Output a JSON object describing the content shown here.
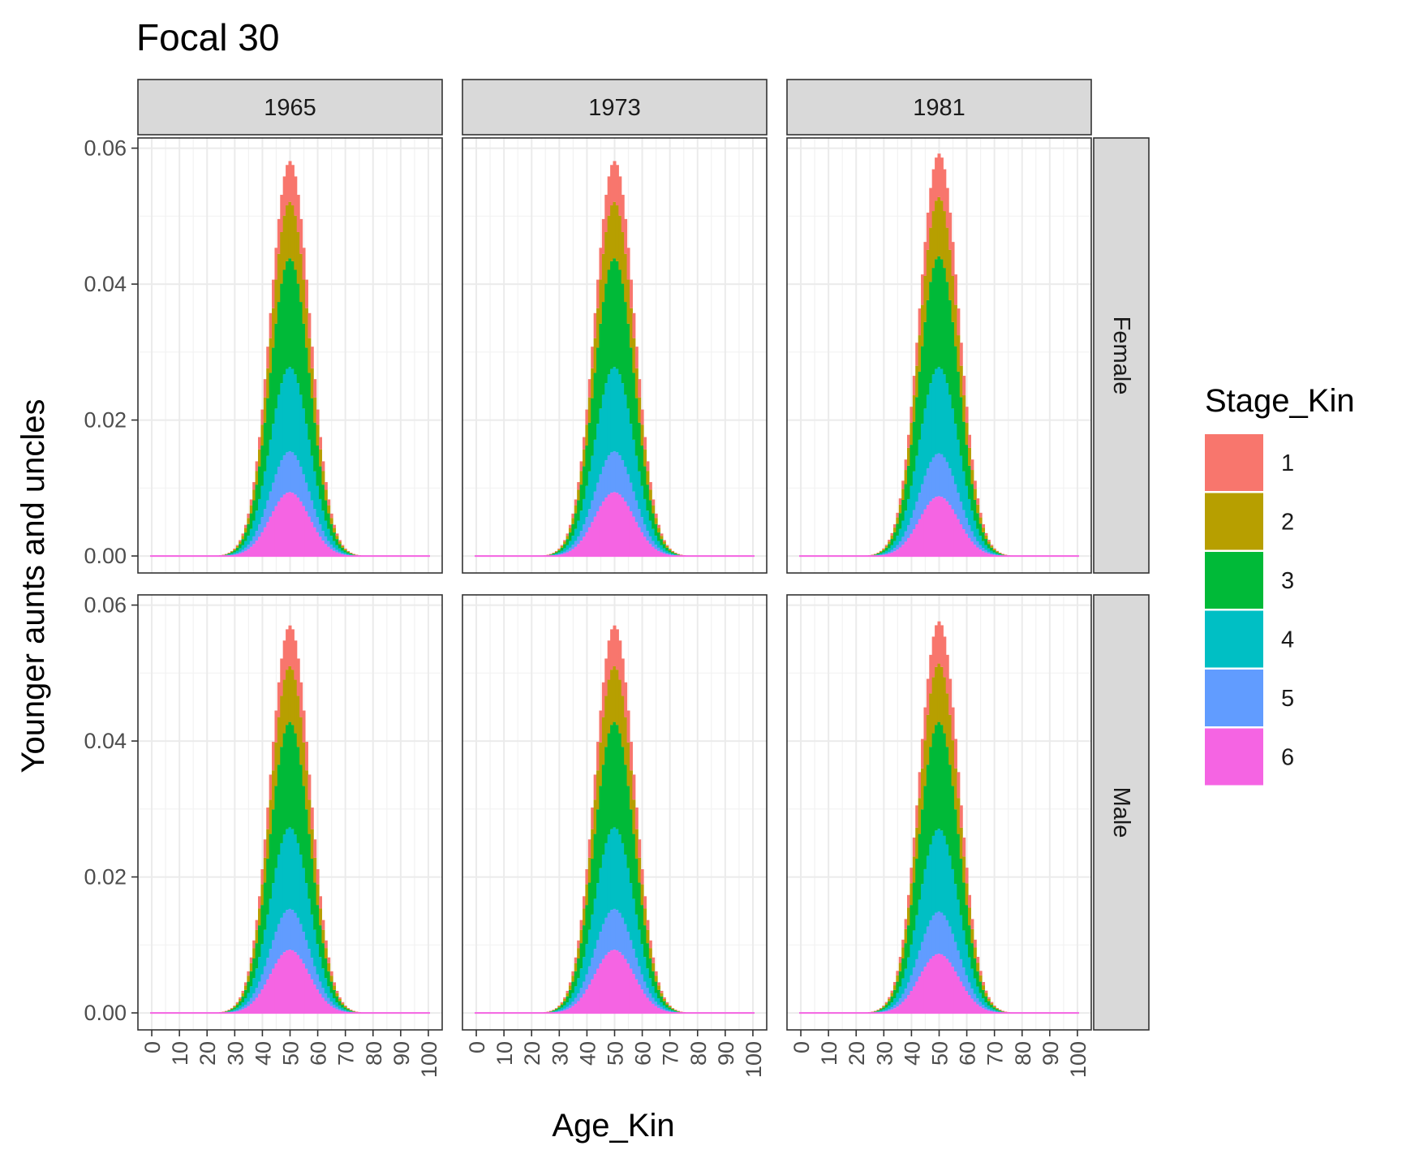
{
  "chart_data": {
    "type": "bar",
    "stacked": true,
    "title": "Focal 30",
    "xlabel": "Age_Kin",
    "ylabel": "Younger aunts and uncles",
    "xlim": [
      -5,
      105
    ],
    "ylim": [
      -0.0025,
      0.0615
    ],
    "x_ticks": [
      0,
      10,
      20,
      30,
      40,
      50,
      60,
      70,
      80,
      90,
      100
    ],
    "y_ticks": [
      0.0,
      0.02,
      0.04,
      0.06
    ],
    "y_tick_labels": [
      "0.00",
      "0.02",
      "0.04",
      "0.06"
    ],
    "y_minor_ticks": [
      0.01,
      0.03,
      0.05
    ],
    "facet_columns": [
      "1965",
      "1973",
      "1981"
    ],
    "facet_rows": [
      "Female",
      "Male"
    ],
    "legend": {
      "title": "Stage_Kin",
      "position": "right",
      "entries": [
        "1",
        "2",
        "3",
        "4",
        "5",
        "6"
      ],
      "colors": [
        "#F8766D",
        "#B79F00",
        "#00BA38",
        "#00BFC4",
        "#619CFF",
        "#F564E3"
      ]
    },
    "stack_order_bottom_to_top": [
      "6",
      "5",
      "4",
      "3",
      "2",
      "1"
    ],
    "distribution": {
      "note": "Totals per age follow a bell curve; series values listed per panel as peak heights by stage",
      "x_start": 0,
      "x_end": 100,
      "peak_age": 50,
      "sd_ages": 7.1,
      "nonzero_age_range": [
        15,
        80
      ]
    },
    "panels": [
      {
        "col": "1965",
        "row": "Female",
        "stage_peak_values": {
          "6": 0.0094,
          "5": 0.006,
          "4": 0.0124,
          "3": 0.016,
          "2": 0.0083,
          "1": 0.006
        }
      },
      {
        "col": "1973",
        "row": "Female",
        "stage_peak_values": {
          "6": 0.0094,
          "5": 0.006,
          "4": 0.0124,
          "3": 0.016,
          "2": 0.0083,
          "1": 0.006
        }
      },
      {
        "col": "1981",
        "row": "Female",
        "stage_peak_values": {
          "6": 0.0088,
          "5": 0.0063,
          "4": 0.0127,
          "3": 0.0163,
          "2": 0.0087,
          "1": 0.0064
        }
      },
      {
        "col": "1965",
        "row": "Male",
        "stage_peak_values": {
          "6": 0.0093,
          "5": 0.006,
          "4": 0.012,
          "3": 0.0155,
          "2": 0.0082,
          "1": 0.006
        }
      },
      {
        "col": "1973",
        "row": "Male",
        "stage_peak_values": {
          "6": 0.0093,
          "5": 0.006,
          "4": 0.012,
          "3": 0.0155,
          "2": 0.0082,
          "1": 0.006
        }
      },
      {
        "col": "1981",
        "row": "Male",
        "stage_peak_values": {
          "6": 0.0087,
          "5": 0.0062,
          "4": 0.0122,
          "3": 0.0157,
          "2": 0.0086,
          "1": 0.0062
        }
      }
    ],
    "grid": true
  }
}
